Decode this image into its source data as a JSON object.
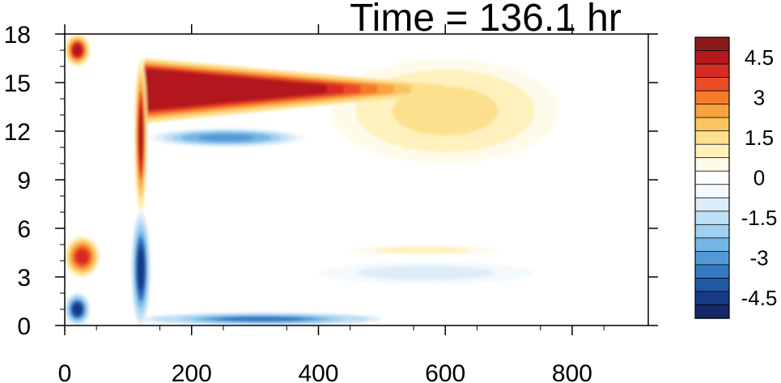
{
  "chart_data": {
    "type": "heatmap",
    "title": "Time = 136.1 hr",
    "xlabel": "",
    "ylabel": "",
    "xlim": [
      0,
      920
    ],
    "ylim": [
      0,
      18
    ],
    "x_ticks": [
      "0",
      "200",
      "400",
      "600",
      "800"
    ],
    "y_ticks": [
      "0",
      "3",
      "6",
      "9",
      "12",
      "15",
      "18"
    ],
    "colorbar": {
      "levels": [
        5.0,
        4.5,
        4.0,
        3.5,
        3.0,
        2.5,
        2.0,
        1.5,
        1.0,
        0.5,
        0.0,
        -0.5,
        -1.0,
        -1.5,
        -2.0,
        -2.5,
        -3.0,
        -3.5,
        -4.0,
        -4.5,
        -5.0
      ],
      "colors": [
        "#8b1a1a",
        "#b3191d",
        "#d72c24",
        "#ea4c26",
        "#f57a2b",
        "#faa23f",
        "#fbc462",
        "#fde08e",
        "#fff1bd",
        "#fffbea",
        "#ffffff",
        "#f3f9fd",
        "#dcecf9",
        "#bfdff4",
        "#9fd0f0",
        "#76b6e5",
        "#529ad7",
        "#3579c3",
        "#2158a6",
        "#173a85",
        "#14286a"
      ],
      "tick_labels": [
        "4.5",
        "3",
        "1.5",
        "0",
        "-1.5",
        "-3",
        "-4.5"
      ]
    },
    "features": [
      {
        "name": "upper warm plume",
        "x_range": [
          125,
          600
        ],
        "y_range": [
          12.5,
          16.5
        ],
        "peak_value": 5,
        "shape": "wedge tapering right"
      },
      {
        "name": "diffuse warm region",
        "x_range": [
          420,
          780
        ],
        "y_range": [
          10,
          16.5
        ],
        "peak_value": 1.8
      },
      {
        "name": "vertical warm streak",
        "x_range": [
          110,
          130
        ],
        "y_range": [
          7,
          16.5
        ],
        "peak_value": 5
      },
      {
        "name": "left edge warm blob upper",
        "x_range": [
          0,
          40
        ],
        "y_range": [
          16,
          18
        ],
        "peak_value": 5
      },
      {
        "name": "left edge warm blob lower",
        "x_range": [
          0,
          55
        ],
        "y_range": [
          3,
          5.5
        ],
        "peak_value": 4.5
      },
      {
        "name": "cool band below plume",
        "x_range": [
          130,
          380
        ],
        "y_range": [
          11,
          12.2
        ],
        "peak_value": -3.5
      },
      {
        "name": "vertical cool front",
        "x_range": [
          105,
          135
        ],
        "y_range": [
          0,
          7
        ],
        "peak_value": -5
      },
      {
        "name": "near surface cool strip",
        "x_range": [
          120,
          500
        ],
        "y_range": [
          0,
          0.8
        ],
        "peak_value": -4
      },
      {
        "name": "left edge cool blob",
        "x_range": [
          0,
          40
        ],
        "y_range": [
          0,
          2
        ],
        "peak_value": -5
      },
      {
        "name": "low level cool layer",
        "x_range": [
          380,
          760
        ],
        "y_range": [
          2.5,
          4
        ],
        "peak_value": -1.2
      },
      {
        "name": "low level warm layer",
        "x_range": [
          430,
          700
        ],
        "y_range": [
          4.3,
          5
        ],
        "peak_value": 1.2
      }
    ]
  }
}
